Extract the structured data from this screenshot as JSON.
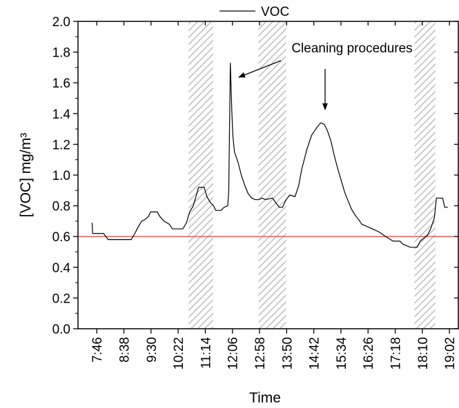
{
  "chart_data": {
    "type": "line",
    "x_label": "Time",
    "y_label": "[VOC] mg/m³",
    "annotation": "Cleaning procedures",
    "legend": "top",
    "series": [
      {
        "name": "VOC",
        "color": "#000000",
        "x": [
          "7:37",
          "7:38",
          "7:59",
          "8:08",
          "8:12",
          "8:52",
          "8:59",
          "9:05",
          "9:12",
          "9:18",
          "9:25",
          "9:29",
          "9:42",
          "9:47",
          "9:55",
          "10:05",
          "10:11",
          "10:31",
          "10:38",
          "10:44",
          "10:51",
          "10:57",
          "11:01",
          "11:12",
          "11:17",
          "11:24",
          "11:30",
          "11:34",
          "11:44",
          "11:50",
          "11:57",
          "11:59",
          "12:02",
          "12:05",
          "12:07",
          "12:10",
          "12:17",
          "12:23",
          "12:30",
          "12:36",
          "12:43",
          "12:50",
          "12:56",
          "13:03",
          "13:09",
          "13:23",
          "13:29",
          "13:36",
          "13:42",
          "13:49",
          "13:56",
          "14:06",
          "14:13",
          "14:19",
          "14:29",
          "14:38",
          "14:48",
          "14:55",
          "15:02",
          "15:08",
          "15:15",
          "15:21",
          "15:28",
          "15:35",
          "15:41",
          "15:48",
          "15:54",
          "16:01",
          "16:08",
          "16:14",
          "16:21",
          "16:34",
          "16:47",
          "17:00",
          "17:14",
          "17:27",
          "17:33",
          "17:40",
          "17:47",
          "18:00",
          "18:06",
          "18:13",
          "18:20",
          "18:26",
          "18:33",
          "18:37",
          "18:49",
          "18:53",
          "18:59"
        ],
        "values": [
          0.69,
          0.62,
          0.62,
          0.58,
          0.58,
          0.58,
          0.62,
          0.66,
          0.7,
          0.71,
          0.73,
          0.76,
          0.76,
          0.73,
          0.7,
          0.68,
          0.65,
          0.65,
          0.69,
          0.76,
          0.8,
          0.87,
          0.92,
          0.92,
          0.86,
          0.82,
          0.8,
          0.77,
          0.77,
          0.79,
          0.8,
          0.9,
          1.73,
          1.4,
          1.25,
          1.15,
          1.08,
          1.0,
          0.93,
          0.88,
          0.85,
          0.84,
          0.84,
          0.85,
          0.84,
          0.85,
          0.82,
          0.79,
          0.79,
          0.84,
          0.87,
          0.86,
          0.93,
          1.04,
          1.17,
          1.26,
          1.31,
          1.34,
          1.33,
          1.29,
          1.22,
          1.13,
          1.04,
          0.96,
          0.89,
          0.83,
          0.78,
          0.74,
          0.71,
          0.68,
          0.67,
          0.65,
          0.63,
          0.6,
          0.57,
          0.57,
          0.55,
          0.54,
          0.53,
          0.53,
          0.57,
          0.59,
          0.61,
          0.65,
          0.72,
          0.85,
          0.85,
          0.79,
          0.79
        ]
      }
    ],
    "reference_line": {
      "value": 0.6,
      "color": "#e8514f"
    },
    "shaded_regions": [
      [
        "10:42",
        "11:29"
      ],
      [
        "12:56",
        "13:49"
      ],
      [
        "17:55",
        "18:35"
      ]
    ],
    "xlim": [
      "7:10",
      "19:19"
    ],
    "xticks": [
      "7:46",
      "8:38",
      "9:30",
      "10:22",
      "11:14",
      "12:06",
      "12:58",
      "13:50",
      "14:42",
      "15:34",
      "16:26",
      "17:18",
      "18:10",
      "19:02"
    ],
    "ylim": [
      0,
      2
    ],
    "yticks": [
      {
        "value": 0,
        "label": "0.0"
      },
      0.2,
      0.4,
      0.6,
      0.8,
      {
        "value": 1,
        "label": "1.0"
      },
      1.2,
      1.4,
      1.6,
      1.8,
      {
        "value": 2,
        "label": "2.0"
      }
    ],
    "yminorticks": [
      0.1,
      0.3,
      0.5,
      0.7,
      0.9,
      1.1,
      1.3,
      1.5,
      1.7,
      1.9
    ]
  }
}
